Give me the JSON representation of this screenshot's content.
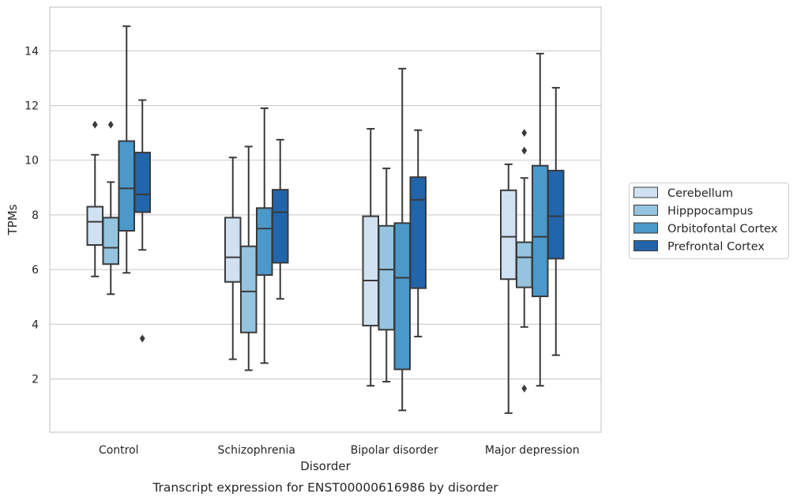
{
  "caption": "Transcript expression for ENST00000616986 by disorder",
  "colors": {
    "grid": "#cccccc",
    "frame": "#cccccc",
    "line": "#3a3a3a",
    "palette": [
      "#d0e1f2",
      "#94c4df",
      "#4b98ca",
      "#2165ab"
    ]
  },
  "chart_data": {
    "type": "box",
    "xlabel": "Disorder",
    "ylabel": "TPMs",
    "ylim": [
      0.05,
      15.6
    ],
    "yticks": [
      2,
      4,
      6,
      8,
      10,
      12,
      14
    ],
    "grid": true,
    "legend_position": "right",
    "categories": [
      "Control",
      "Schizophrenia",
      "Bipolar disorder",
      "Major depression"
    ],
    "series": [
      {
        "name": "Cerebellum",
        "boxes": [
          {
            "whislo": 5.75,
            "q1": 6.9,
            "med": 7.75,
            "q3": 8.3,
            "whishi": 10.2,
            "fliers": [
              11.3
            ]
          },
          {
            "whislo": 2.72,
            "q1": 5.55,
            "med": 6.45,
            "q3": 7.9,
            "whishi": 10.1,
            "fliers": []
          },
          {
            "whislo": 1.75,
            "q1": 3.95,
            "med": 5.6,
            "q3": 7.95,
            "whishi": 11.15,
            "fliers": []
          },
          {
            "whislo": 0.75,
            "q1": 5.65,
            "med": 7.2,
            "q3": 8.9,
            "whishi": 9.85,
            "fliers": []
          }
        ]
      },
      {
        "name": "Hipppocampus",
        "boxes": [
          {
            "whislo": 5.1,
            "q1": 6.2,
            "med": 6.8,
            "q3": 7.9,
            "whishi": 9.2,
            "fliers": [
              11.3
            ]
          },
          {
            "whislo": 2.32,
            "q1": 3.7,
            "med": 5.2,
            "q3": 6.85,
            "whishi": 10.5,
            "fliers": []
          },
          {
            "whislo": 1.9,
            "q1": 3.8,
            "med": 6.0,
            "q3": 7.6,
            "whishi": 9.7,
            "fliers": []
          },
          {
            "whislo": 3.9,
            "q1": 5.35,
            "med": 6.45,
            "q3": 7.0,
            "whishi": 9.35,
            "fliers": [
              11.0,
              10.35,
              1.65
            ]
          }
        ]
      },
      {
        "name": "Orbitofontal Cortex",
        "boxes": [
          {
            "whislo": 5.88,
            "q1": 7.42,
            "med": 8.97,
            "q3": 10.7,
            "whishi": 14.9,
            "fliers": []
          },
          {
            "whislo": 2.58,
            "q1": 5.8,
            "med": 7.5,
            "q3": 8.25,
            "whishi": 11.9,
            "fliers": []
          },
          {
            "whislo": 0.85,
            "q1": 2.35,
            "med": 5.7,
            "q3": 7.7,
            "whishi": 13.35,
            "fliers": []
          },
          {
            "whislo": 1.75,
            "q1": 5.02,
            "med": 7.2,
            "q3": 9.8,
            "whishi": 13.9,
            "fliers": []
          }
        ]
      },
      {
        "name": "Prefrontal Cortex",
        "boxes": [
          {
            "whislo": 6.72,
            "q1": 8.1,
            "med": 8.75,
            "q3": 10.28,
            "whishi": 12.2,
            "fliers": [
              3.48
            ]
          },
          {
            "whislo": 4.93,
            "q1": 6.25,
            "med": 8.1,
            "q3": 8.92,
            "whishi": 10.75,
            "fliers": []
          },
          {
            "whislo": 3.55,
            "q1": 5.32,
            "med": 8.55,
            "q3": 9.38,
            "whishi": 11.1,
            "fliers": []
          },
          {
            "whislo": 2.87,
            "q1": 6.4,
            "med": 7.95,
            "q3": 9.62,
            "whishi": 12.65,
            "fliers": []
          }
        ]
      }
    ]
  }
}
